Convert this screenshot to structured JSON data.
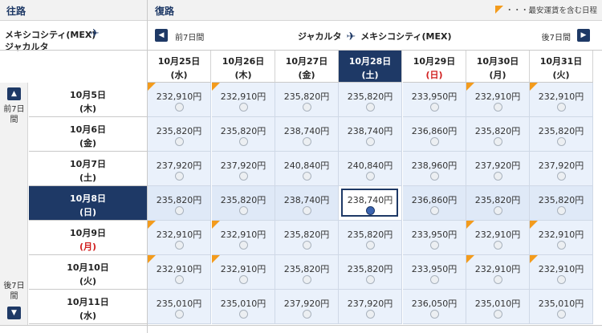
{
  "outbound_header": "往路",
  "return_header": "復路",
  "legend": "・・・最安運賃を含む日程",
  "route_out": {
    "line1": "メキシコシティ(MEX)",
    "line2": "ジャカルタ"
  },
  "route_return": {
    "from": "ジャカルタ",
    "to": "メキシコシティ(MEX)"
  },
  "nav": {
    "prev_label": "前7日間",
    "next_label": "後7日間",
    "prev_icon": "chevron-left-icon",
    "next_icon": "chevron-right-icon"
  },
  "left_nav": {
    "up_label": "前7日間",
    "down_label": "後7日間",
    "up_icon": "chevron-up-icon",
    "down_icon": "chevron-down-icon"
  },
  "accent_color": "#1e3966",
  "cheapest_marker_color": "#f39b1c",
  "holiday_color": "#d11f1f",
  "selected_return_index": 3,
  "selected_outbound_index": 3,
  "return_dates": [
    {
      "date": "10月25日",
      "dow": "(水)",
      "holiday": false
    },
    {
      "date": "10月26日",
      "dow": "(木)",
      "holiday": false
    },
    {
      "date": "10月27日",
      "dow": "(金)",
      "holiday": false
    },
    {
      "date": "10月28日",
      "dow": "(土)",
      "holiday": false
    },
    {
      "date": "10月29日",
      "dow": "(日)",
      "holiday": true
    },
    {
      "date": "10月30日",
      "dow": "(月)",
      "holiday": false
    },
    {
      "date": "10月31日",
      "dow": "(火)",
      "holiday": false
    }
  ],
  "outbound_dates": [
    {
      "date": "10月5日",
      "dow": "(木)",
      "holiday": false
    },
    {
      "date": "10月6日",
      "dow": "(金)",
      "holiday": false
    },
    {
      "date": "10月7日",
      "dow": "(土)",
      "holiday": false
    },
    {
      "date": "10月8日",
      "dow": "(日)",
      "holiday": false
    },
    {
      "date": "10月9日",
      "dow": "(月)",
      "holiday": true
    },
    {
      "date": "10月10日",
      "dow": "(火)",
      "holiday": false
    },
    {
      "date": "10月11日",
      "dow": "(水)",
      "holiday": false
    }
  ],
  "grid": [
    [
      {
        "price": "232,910円",
        "cheapest": true
      },
      {
        "price": "232,910円",
        "cheapest": true
      },
      {
        "price": "235,820円",
        "cheapest": false
      },
      {
        "price": "235,820円",
        "cheapest": false
      },
      {
        "price": "233,950円",
        "cheapest": false
      },
      {
        "price": "232,910円",
        "cheapest": true
      },
      {
        "price": "232,910円",
        "cheapest": true
      }
    ],
    [
      {
        "price": "235,820円",
        "cheapest": false
      },
      {
        "price": "235,820円",
        "cheapest": false
      },
      {
        "price": "238,740円",
        "cheapest": false
      },
      {
        "price": "238,740円",
        "cheapest": false
      },
      {
        "price": "236,860円",
        "cheapest": false
      },
      {
        "price": "235,820円",
        "cheapest": false
      },
      {
        "price": "235,820円",
        "cheapest": false
      }
    ],
    [
      {
        "price": "237,920円",
        "cheapest": false
      },
      {
        "price": "237,920円",
        "cheapest": false
      },
      {
        "price": "240,840円",
        "cheapest": false
      },
      {
        "price": "240,840円",
        "cheapest": false
      },
      {
        "price": "238,960円",
        "cheapest": false
      },
      {
        "price": "237,920円",
        "cheapest": false
      },
      {
        "price": "237,920円",
        "cheapest": false
      }
    ],
    [
      {
        "price": "235,820円",
        "cheapest": false
      },
      {
        "price": "235,820円",
        "cheapest": false
      },
      {
        "price": "238,740円",
        "cheapest": false
      },
      {
        "price": "238,740円",
        "cheapest": false
      },
      {
        "price": "236,860円",
        "cheapest": false
      },
      {
        "price": "235,820円",
        "cheapest": false
      },
      {
        "price": "235,820円",
        "cheapest": false
      }
    ],
    [
      {
        "price": "232,910円",
        "cheapest": true
      },
      {
        "price": "232,910円",
        "cheapest": true
      },
      {
        "price": "235,820円",
        "cheapest": false
      },
      {
        "price": "235,820円",
        "cheapest": false
      },
      {
        "price": "233,950円",
        "cheapest": false
      },
      {
        "price": "232,910円",
        "cheapest": true
      },
      {
        "price": "232,910円",
        "cheapest": true
      }
    ],
    [
      {
        "price": "232,910円",
        "cheapest": true
      },
      {
        "price": "232,910円",
        "cheapest": true
      },
      {
        "price": "235,820円",
        "cheapest": false
      },
      {
        "price": "235,820円",
        "cheapest": false
      },
      {
        "price": "233,950円",
        "cheapest": false
      },
      {
        "price": "232,910円",
        "cheapest": true
      },
      {
        "price": "232,910円",
        "cheapest": true
      }
    ],
    [
      {
        "price": "235,010円",
        "cheapest": false
      },
      {
        "price": "235,010円",
        "cheapest": false
      },
      {
        "price": "237,920円",
        "cheapest": false
      },
      {
        "price": "237,920円",
        "cheapest": false
      },
      {
        "price": "236,050円",
        "cheapest": false
      },
      {
        "price": "235,010円",
        "cheapest": false
      },
      {
        "price": "235,010円",
        "cheapest": false
      }
    ]
  ]
}
